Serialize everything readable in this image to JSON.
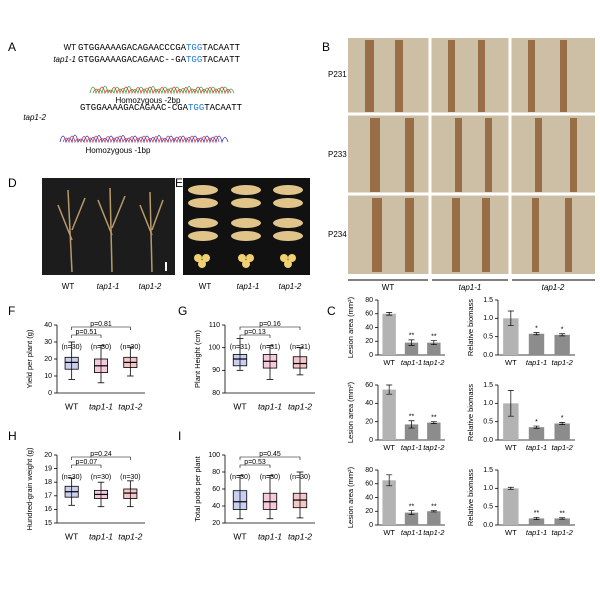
{
  "panel_letters": [
    "A",
    "B",
    "C",
    "D",
    "E",
    "F",
    "G",
    "H",
    "I"
  ],
  "panel_a": {
    "wt_label": "WT",
    "wt_seq": [
      "GTGGAAAAGACAGAACCCGA",
      "TGG",
      "TACAATT"
    ],
    "tap1_1_label": "tap1-1",
    "tap1_1_seq": [
      "GTGGAAAAGACAGAAC--GA",
      "TGG",
      "TACAATT"
    ],
    "tap1_1_note": "Homozygous -2bp",
    "tap1_2_label": "tap1-2",
    "tap1_2_seq": [
      "GTGGAAAAGACAGAAC-CGA",
      "TGG",
      "TACAATT"
    ],
    "tap1_2_note": "Homozygous -1bp"
  },
  "panel_b": {
    "row_labels": [
      "P231",
      "P233",
      "P234"
    ],
    "col_labels": [
      "WT",
      "tap1-1",
      "tap1-2"
    ]
  },
  "panel_d": {
    "labels": [
      "WT",
      "tap1-1",
      "tap1-2"
    ]
  },
  "panel_e": {
    "labels": [
      "WT",
      "tap1-1",
      "tap1-2"
    ]
  },
  "chart_data": [
    {
      "type": "box",
      "ylabel": "Yield per plant (g)",
      "categories": [
        "WT",
        "tap1-1",
        "tap1-2"
      ],
      "colors": [
        "#2b3fc4",
        "#d0306d",
        "#c8202a"
      ],
      "boxes": [
        {
          "min": 8,
          "q1": 14,
          "median": 18,
          "q3": 21,
          "max": 30
        },
        {
          "min": 6,
          "q1": 12,
          "median": 16,
          "q3": 20,
          "max": 28
        },
        {
          "min": 10,
          "q1": 15,
          "median": 18,
          "q3": 21,
          "max": 27
        }
      ],
      "n_labels": [
        "(n=30)",
        "(n=30)",
        "(n=30)"
      ],
      "p_labels": [
        "p=0.81",
        "p=0.51"
      ],
      "ylim": [
        0,
        40
      ],
      "yticks": [
        0,
        10,
        20,
        30,
        40
      ]
    },
    {
      "type": "box",
      "ylabel": "Plant Height (cm)",
      "categories": [
        "WT",
        "tap1-1",
        "tap1-2"
      ],
      "colors": [
        "#2b3fc4",
        "#d0306d",
        "#c8202a"
      ],
      "boxes": [
        {
          "min": 90,
          "q1": 92,
          "median": 95,
          "q3": 97,
          "max": 104
        },
        {
          "min": 86,
          "q1": 91,
          "median": 94,
          "q3": 97,
          "max": 101
        },
        {
          "min": 88,
          "q1": 91,
          "median": 93,
          "q3": 96,
          "max": 100
        }
      ],
      "n_labels": [
        "(n=31)",
        "(n=31)",
        "(n=31)"
      ],
      "p_labels": [
        "p=0.16",
        "p=0.13"
      ],
      "ylim": [
        80,
        110
      ],
      "yticks": [
        80,
        90,
        100,
        110
      ]
    },
    {
      "type": "box",
      "ylabel": "Hundred-grain weight (g)",
      "categories": [
        "WT",
        "tap1-1",
        "tap1-2"
      ],
      "colors": [
        "#2b3fc4",
        "#d0306d",
        "#c8202a"
      ],
      "boxes": [
        {
          "min": 16.3,
          "q1": 16.9,
          "median": 17.3,
          "q3": 17.7,
          "max": 18.3
        },
        {
          "min": 16.2,
          "q1": 16.8,
          "median": 17.1,
          "q3": 17.4,
          "max": 18
        },
        {
          "min": 16.2,
          "q1": 16.8,
          "median": 17.2,
          "q3": 17.5,
          "max": 18.1
        }
      ],
      "n_labels": [
        "(n=30)",
        "(n=30)",
        "(n=30)"
      ],
      "p_labels": [
        "p=0.24",
        "p=0.07"
      ],
      "ylim": [
        15,
        20
      ],
      "yticks": [
        15,
        16,
        17,
        18,
        19,
        20
      ]
    },
    {
      "type": "box",
      "ylabel": "Total pods per plant",
      "categories": [
        "WT",
        "tap1-1",
        "tap1-2"
      ],
      "colors": [
        "#2b3fc4",
        "#d0306d",
        "#c8202a"
      ],
      "boxes": [
        {
          "min": 25,
          "q1": 36,
          "median": 45,
          "q3": 58,
          "max": 76
        },
        {
          "min": 25,
          "q1": 36,
          "median": 45,
          "q3": 55,
          "max": 76
        },
        {
          "min": 26,
          "q1": 38,
          "median": 47,
          "q3": 55,
          "max": 80
        }
      ],
      "n_labels": [
        "(n=30)",
        "(n=30)",
        "(n=30)"
      ],
      "p_labels": [
        "p=0.45",
        "p=0.53"
      ],
      "ylim": [
        20,
        100
      ],
      "yticks": [
        20,
        40,
        60,
        80,
        100
      ]
    },
    {
      "type": "bar",
      "ylabel": "Lesion area (mm²)",
      "categories": [
        "WT",
        "tap1-1",
        "tap1-2"
      ],
      "colors": [
        "#b3b3b3",
        "#8c8c8c",
        "#8c8c8c"
      ],
      "values": [
        60,
        18,
        18
      ],
      "errors": [
        2,
        4,
        3
      ],
      "sig_labels": [
        null,
        "**",
        "**"
      ],
      "ylim": [
        0,
        80
      ],
      "yticks": [
        0,
        20,
        40,
        60,
        80
      ]
    },
    {
      "type": "bar",
      "ylabel": "Relative biomass",
      "categories": [
        "WT",
        "tap1-1",
        "tap1-2"
      ],
      "colors": [
        "#b3b3b3",
        "#8c8c8c",
        "#8c8c8c"
      ],
      "values": [
        1,
        0.58,
        0.55
      ],
      "errors": [
        0.2,
        0.03,
        0.03
      ],
      "sig_labels": [
        null,
        "*",
        "*"
      ],
      "ylim": [
        0,
        1.5
      ],
      "yticks": [
        {
          "value": 0,
          "label": "0.0"
        },
        0.5,
        {
          "value": 1,
          "label": "1.0"
        },
        1.5
      ]
    },
    {
      "type": "bar",
      "ylabel": "Lesion area (mm²)",
      "categories": [
        "WT",
        "tap1-1",
        "tap1-2"
      ],
      "colors": [
        "#b3b3b3",
        "#8c8c8c",
        "#8c8c8c"
      ],
      "values": [
        55,
        17,
        19
      ],
      "errors": [
        5,
        4,
        1
      ],
      "sig_labels": [
        null,
        "**",
        "**"
      ],
      "ylim": [
        0,
        60
      ],
      "yticks": [
        0,
        20,
        40,
        60
      ]
    },
    {
      "type": "bar",
      "ylabel": "Relative biomass",
      "categories": [
        "WT",
        "tap1-1",
        "tap1-2"
      ],
      "colors": [
        "#b3b3b3",
        "#8c8c8c",
        "#8c8c8c"
      ],
      "values": [
        1,
        0.35,
        0.45
      ],
      "errors": [
        0.35,
        0.03,
        0.03
      ],
      "sig_labels": [
        null,
        "*",
        "*"
      ],
      "ylim": [
        0,
        1.5
      ],
      "yticks": [
        {
          "value": 0,
          "label": "0.0"
        },
        0.5,
        {
          "value": 1,
          "label": "1.0"
        },
        1.5
      ]
    },
    {
      "type": "bar",
      "ylabel": "Lesion area (mm²)",
      "categories": [
        "WT",
        "tap1-1",
        "tap1-2"
      ],
      "colors": [
        "#b3b3b3",
        "#8c8c8c",
        "#8c8c8c"
      ],
      "values": [
        65,
        18,
        20
      ],
      "errors": [
        8,
        3,
        1
      ],
      "sig_labels": [
        null,
        "**",
        "**"
      ],
      "ylim": [
        0,
        80
      ],
      "yticks": [
        0,
        20,
        40,
        60,
        80
      ]
    },
    {
      "type": "bar",
      "ylabel": "Relative biomass",
      "categories": [
        "WT",
        "tap1-1",
        "tap1-2"
      ],
      "colors": [
        "#b3b3b3",
        "#8c8c8c",
        "#8c8c8c"
      ],
      "values": [
        1,
        0.18,
        0.18
      ],
      "errors": [
        0.03,
        0.03,
        0.02
      ],
      "sig_labels": [
        null,
        "**",
        "**"
      ],
      "ylim": [
        0,
        1.5
      ],
      "yticks": [
        {
          "value": 0,
          "label": "0.0"
        },
        0.5,
        {
          "value": 1,
          "label": "1.0"
        },
        1.5
      ]
    }
  ]
}
